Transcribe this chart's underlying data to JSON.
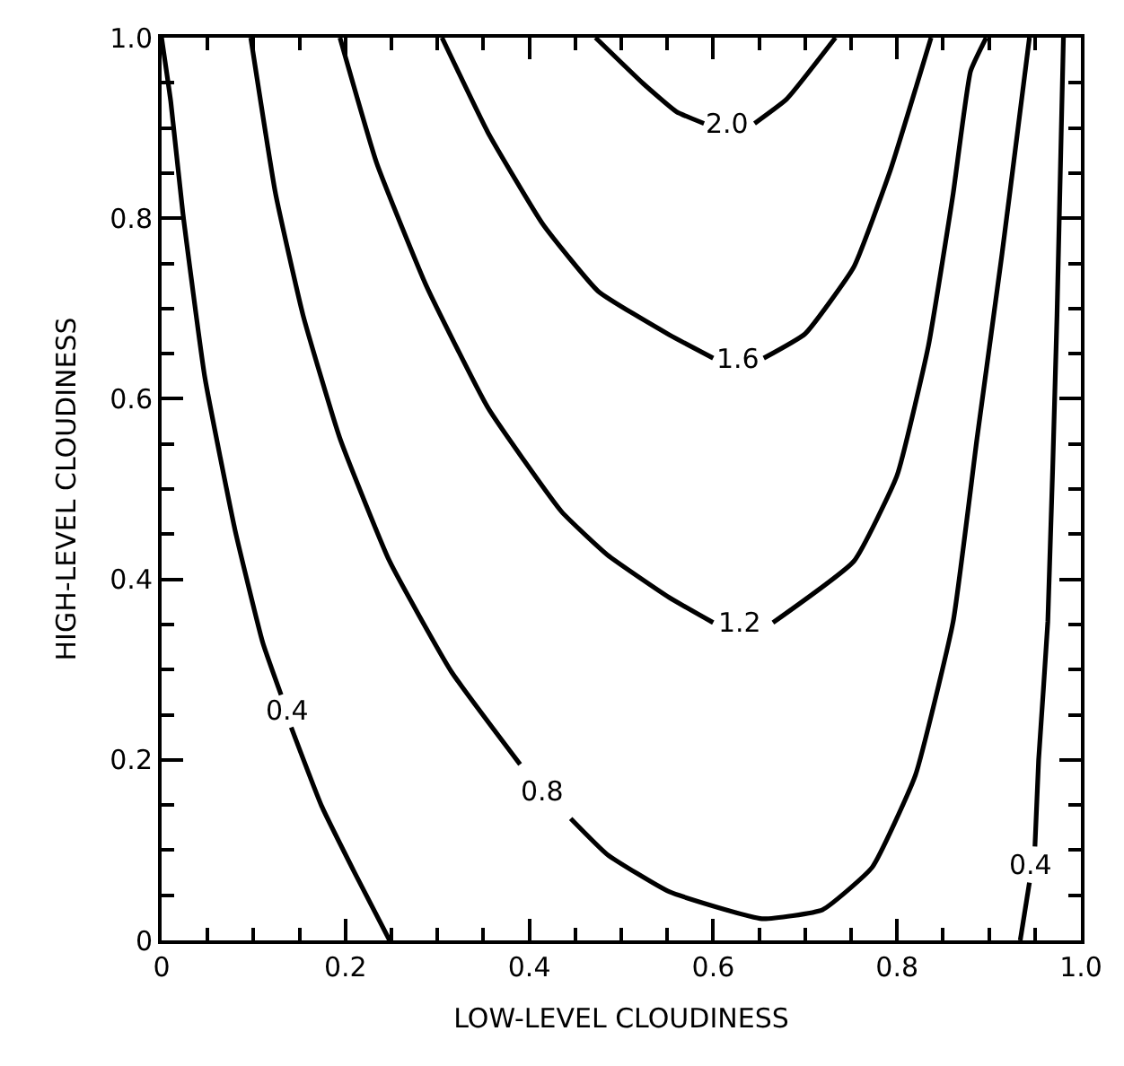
{
  "chart_data": {
    "type": "line",
    "xlabel": "LOW-LEVEL CLOUDINESS",
    "ylabel": "HIGH-LEVEL CLOUDINESS",
    "xlim": [
      0,
      1
    ],
    "ylim": [
      0,
      1
    ],
    "xticks": [
      0,
      {
        "value": 0.05,
        "label": null
      },
      {
        "value": 0.1,
        "label": null
      },
      {
        "value": 0.15,
        "label": null
      },
      0.2,
      {
        "value": 0.25,
        "label": null
      },
      {
        "value": 0.3,
        "label": null
      },
      {
        "value": 0.35,
        "label": null
      },
      0.4,
      {
        "value": 0.45,
        "label": null
      },
      {
        "value": 0.5,
        "label": null
      },
      {
        "value": 0.55,
        "label": null
      },
      0.6,
      {
        "value": 0.65,
        "label": null
      },
      {
        "value": 0.7,
        "label": null
      },
      {
        "value": 0.75,
        "label": null
      },
      0.8,
      {
        "value": 0.85,
        "label": null
      },
      {
        "value": 0.9,
        "label": null
      },
      {
        "value": 0.95,
        "label": null
      },
      {
        "value": 1,
        "label": "1.0"
      }
    ],
    "yticks": [
      0,
      {
        "value": 0.05,
        "label": null
      },
      {
        "value": 0.1,
        "label": null
      },
      {
        "value": 0.15,
        "label": null
      },
      0.2,
      {
        "value": 0.25,
        "label": null
      },
      {
        "value": 0.3,
        "label": null
      },
      {
        "value": 0.35,
        "label": null
      },
      0.4,
      {
        "value": 0.45,
        "label": null
      },
      {
        "value": 0.5,
        "label": null
      },
      {
        "value": 0.55,
        "label": null
      },
      0.6,
      {
        "value": 0.65,
        "label": null
      },
      {
        "value": 0.7,
        "label": null
      },
      {
        "value": 0.75,
        "label": null
      },
      0.8,
      {
        "value": 0.85,
        "label": null
      },
      {
        "value": 0.9,
        "label": null
      },
      {
        "value": 0.95,
        "label": null
      },
      {
        "value": 1,
        "label": "1.0"
      }
    ],
    "marker": "none",
    "line_style": "solid",
    "series": [
      {
        "name": "0.4",
        "color": "#000000",
        "x": [
          0,
          0.01,
          0.023,
          0.047,
          0.08,
          0.11,
          0.13,
          0.136,
          0.141,
          0.174,
          0.21,
          0.248,
          null,
          0.981,
          0.974,
          0.964,
          0.954,
          0.95,
          0.946,
          0.944,
          0.934
        ],
        "values": [
          1,
          0.929,
          0.807,
          0.624,
          0.454,
          0.33,
          0.272,
          null,
          0.236,
          0.149,
          0.075,
          0,
          null,
          1,
          0.692,
          0.353,
          0.2,
          0.104,
          null,
          0.064,
          0
        ]
      },
      {
        "name": "0.8",
        "color": "#000000",
        "x": [
          0.097,
          0.124,
          0.154,
          0.194,
          0.248,
          0.315,
          0.39,
          0.415,
          0.445,
          0.485,
          0.552,
          0.653,
          0.719,
          0.773,
          0.82,
          0.861,
          0.887,
          0.914,
          0.931,
          0.944
        ],
        "values": [
          1,
          0.827,
          0.692,
          0.556,
          0.42,
          0.298,
          0.195,
          null,
          0.135,
          0.095,
          0.054,
          0.024,
          0.034,
          0.081,
          0.183,
          0.353,
          0.556,
          0.759,
          0.895,
          1
        ]
      },
      {
        "name": "1.2",
        "color": "#000000",
        "x": [
          0.194,
          0.234,
          0.288,
          0.355,
          0.435,
          0.485,
          0.552,
          0.6,
          0.629,
          0.665,
          0.753,
          0.8,
          0.834,
          0.861,
          0.88,
          0.897
        ],
        "values": [
          1,
          0.861,
          0.725,
          0.59,
          0.475,
          0.427,
          0.38,
          0.352,
          null,
          0.352,
          0.42,
          0.515,
          0.658,
          0.827,
          0.963,
          1
        ]
      },
      {
        "name": "1.6",
        "color": "#000000",
        "x": [
          0.305,
          0.355,
          0.415,
          0.475,
          0.552,
          0.6,
          0.626,
          0.655,
          0.7,
          0.753,
          0.793,
          0.837
        ],
        "values": [
          1,
          0.895,
          0.793,
          0.719,
          0.671,
          0.645,
          null,
          0.645,
          0.672,
          0.746,
          0.854,
          1
        ]
      },
      {
        "name": "2.0",
        "color": "#000000",
        "x": [
          0.472,
          0.524,
          0.56,
          0.59,
          0.616,
          0.645,
          0.68,
          0.733
        ],
        "values": [
          1,
          0.949,
          0.918,
          0.905,
          null,
          0.905,
          0.932,
          1
        ]
      }
    ]
  }
}
